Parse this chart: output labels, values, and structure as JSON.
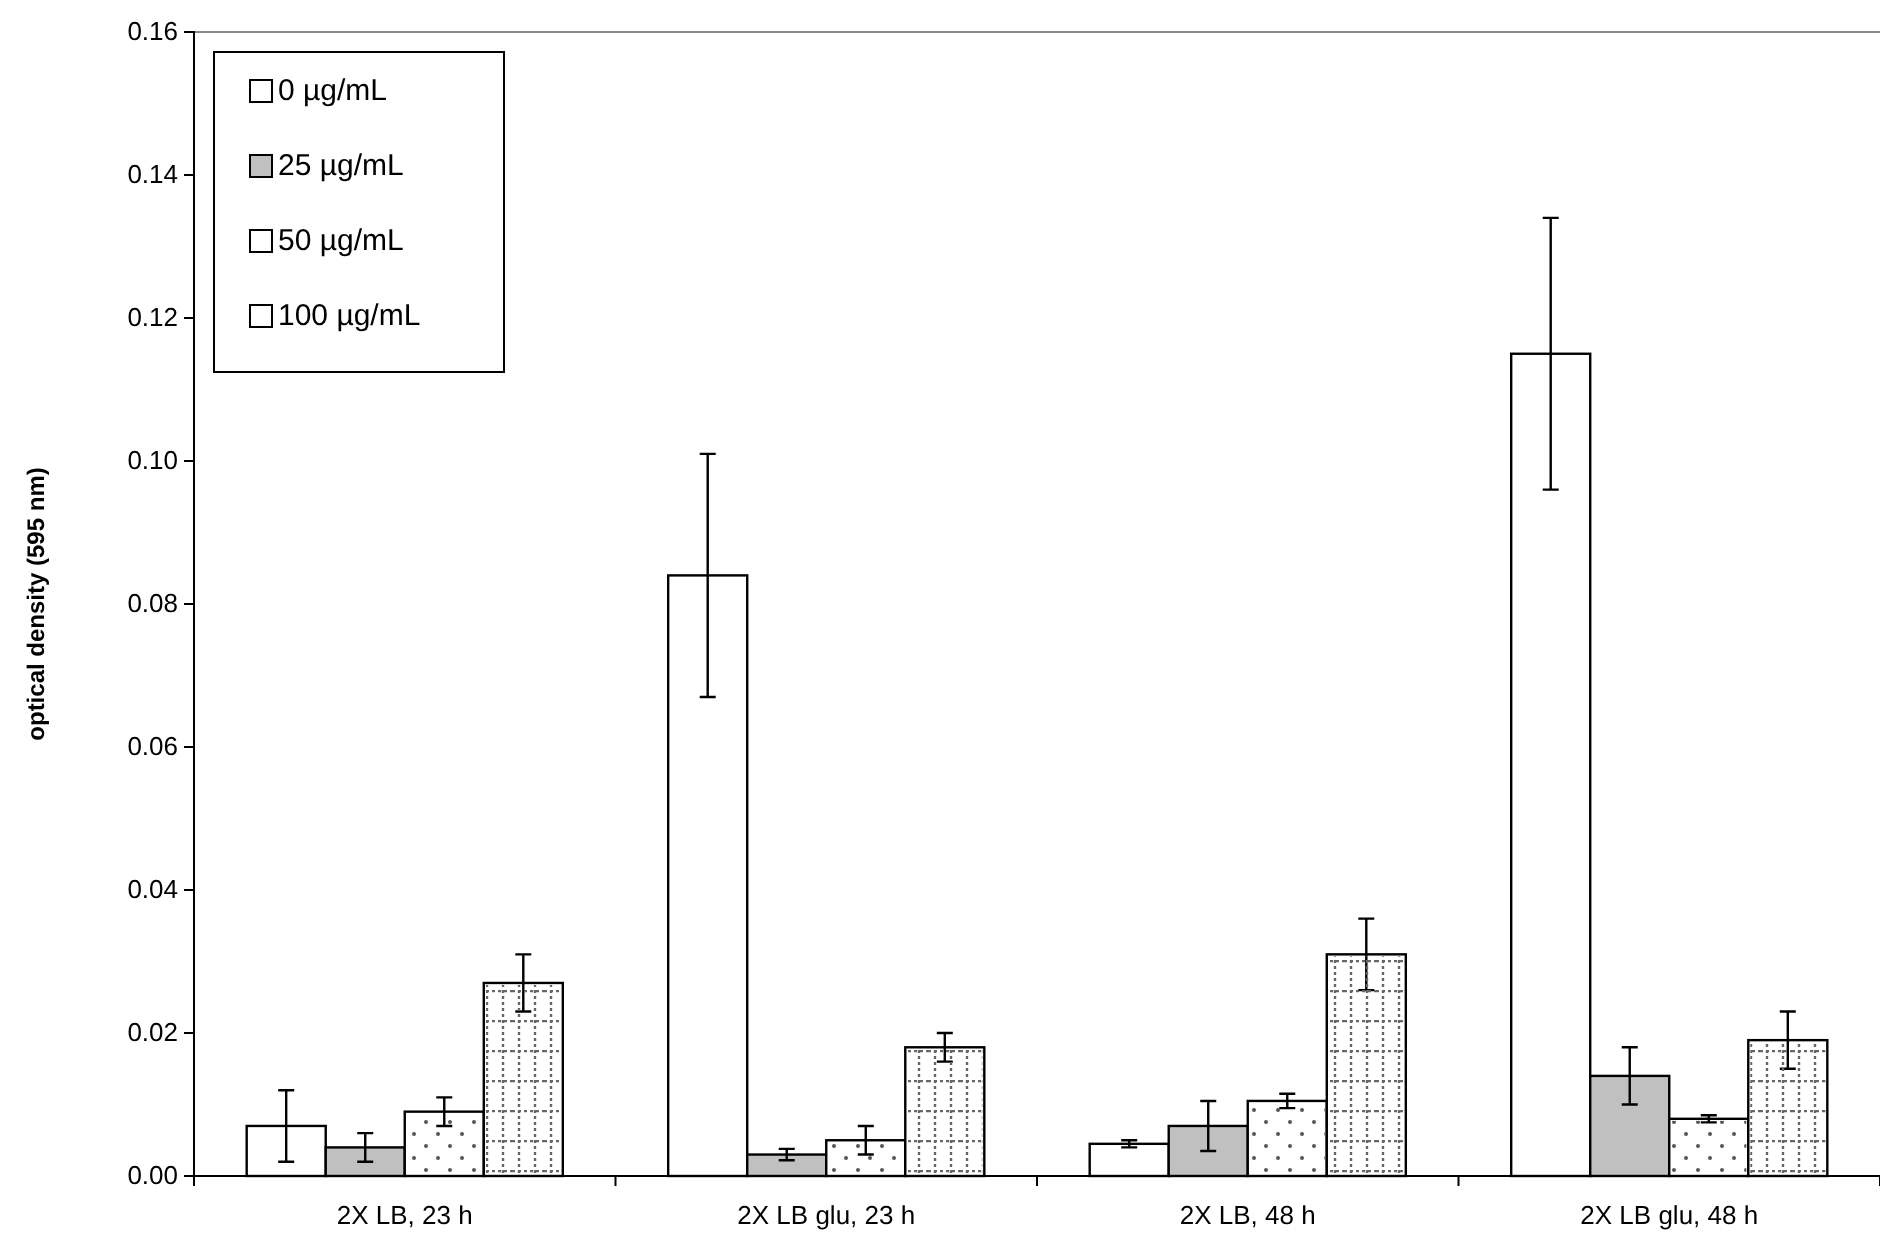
{
  "chart_data": {
    "type": "bar",
    "ylabel": "optical density (595 nm)",
    "categories": [
      "2X LB, 23 h",
      "2X LB glu, 23 h",
      "2X LB, 48 h",
      "2X LB glu, 48 h"
    ],
    "series": [
      {
        "name": "0 µg/mL",
        "color": "#ffffff",
        "values": [
          0.007,
          0.084,
          0.0045,
          0.115
        ],
        "errors": [
          0.005,
          0.017,
          0.0005,
          0.019
        ]
      },
      {
        "name": "25 µg/mL",
        "color": "#c0c0c0",
        "values": [
          0.004,
          0.003,
          0.007,
          0.014
        ],
        "errors": [
          0.002,
          0.0008,
          0.0035,
          0.004
        ]
      },
      {
        "name": "50 µg/mL",
        "color": "#ffffff",
        "values": [
          0.009,
          0.005,
          0.0105,
          0.008
        ],
        "errors": [
          0.002,
          0.002,
          0.001,
          0.0005
        ]
      },
      {
        "name": "100 µg/mL",
        "color": "#ffffff",
        "values": [
          0.027,
          0.018,
          0.031,
          0.019
        ],
        "errors": [
          0.004,
          0.002,
          0.005,
          0.004
        ]
      }
    ],
    "ylim": [
      0,
      0.16
    ],
    "yticks": [
      {
        "value": 0,
        "label": "0.00"
      },
      {
        "value": 0.02,
        "label": "0.02"
      },
      {
        "value": 0.04,
        "label": "0.04"
      },
      {
        "value": 0.06,
        "label": "0.06"
      },
      {
        "value": 0.08,
        "label": "0.08"
      },
      {
        "value": 0.1,
        "label": "0.10"
      },
      {
        "value": 0.12,
        "label": "0.12"
      },
      {
        "value": 0.14,
        "label": "0.14"
      },
      {
        "value": 0.16,
        "label": "0.16"
      }
    ],
    "legend": "top left"
  }
}
